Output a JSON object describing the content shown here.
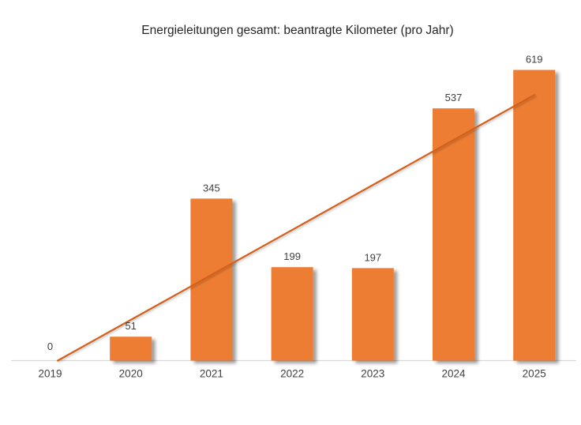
{
  "chart_data": {
    "type": "bar",
    "title": "Energieleitungen gesamt: beantragte Kilometer (pro Jahr)",
    "categories": [
      "2019",
      "2020",
      "2021",
      "2022",
      "2023",
      "2024",
      "2025"
    ],
    "values": [
      0,
      51,
      345,
      199,
      197,
      537,
      619
    ],
    "data_labels": [
      "0",
      "51",
      "345",
      "199",
      "197",
      "537",
      "619"
    ],
    "xlabel": "",
    "ylabel": "",
    "ylim": [
      0,
      650
    ],
    "grid": false,
    "legend": false,
    "y_axis_visible": false,
    "trendline": {
      "type": "linear",
      "applies_to": "values"
    },
    "colors": {
      "bar": "#ED7D31",
      "trendline": "#D4611F",
      "axis_line": "#D9D9D9",
      "data_label_text": "#404040",
      "category_text": "#404040",
      "title_text": "#262626",
      "background": "#FFFFFF"
    }
  }
}
